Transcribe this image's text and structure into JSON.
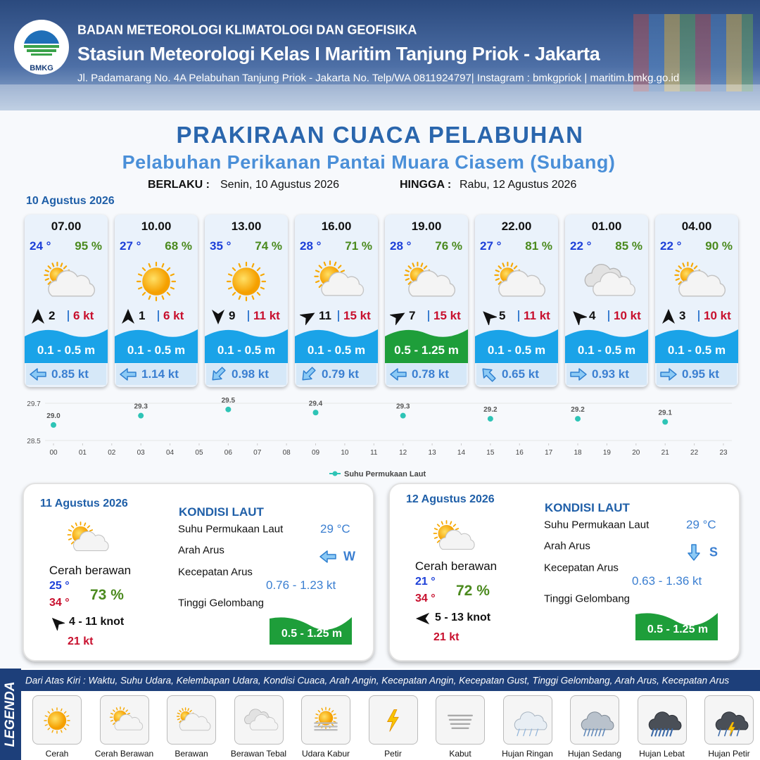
{
  "header": {
    "logo_text": "BMKG",
    "agency": "BADAN METEOROLOGI KLIMATOLOGI DAN GEOFISIKA",
    "station": "Stasiun Meteorologi Kelas I Maritim Tanjung Priok - Jakarta",
    "address": "Jl. Padamarang No. 4A Pelabuhan Tanjung Priok - Jakarta No. Telp/WA 0811924797| Instagram : bmkgpriok | maritim.bmkg.go.id"
  },
  "title": "PRAKIRAAN CUACA PELABUHAN",
  "subtitle": "Pelabuhan Perikanan Pantai Muara Ciasem (Subang)",
  "validity": {
    "from_label": "BERLAKU :",
    "from": "Senin, 10 Agustus 2026",
    "to_label": "HINGGA :",
    "to": "Rabu, 12 Agustus 2026"
  },
  "day1_date": "10 Agustus 2026",
  "cards": [
    {
      "time": "07.00",
      "temp": "24 °",
      "humidity": "95 %",
      "wind": "2",
      "gust": "6 kt",
      "wave": "0.1 - 0.5 m",
      "current": "0.85 kt"
    },
    {
      "time": "10.00",
      "temp": "27 °",
      "humidity": "68 %",
      "wind": "1",
      "gust": "6 kt",
      "wave": "0.1 - 0.5 m",
      "current": "1.14 kt"
    },
    {
      "time": "13.00",
      "temp": "35 °",
      "humidity": "74 %",
      "wind": "9",
      "gust": "11 kt",
      "wave": "0.1 - 0.5 m",
      "current": "0.98 kt"
    },
    {
      "time": "16.00",
      "temp": "28 °",
      "humidity": "71 %",
      "wind": "11",
      "gust": "15 kt",
      "wave": "0.1 - 0.5 m",
      "current": "0.79 kt"
    },
    {
      "time": "19.00",
      "temp": "28 °",
      "humidity": "76 %",
      "wind": "7",
      "gust": "15 kt",
      "wave": "0.5 - 1.25 m",
      "current": "0.78 kt"
    },
    {
      "time": "22.00",
      "temp": "27 °",
      "humidity": "81 %",
      "wind": "5",
      "gust": "11 kt",
      "wave": "0.1 - 0.5 m",
      "current": "0.65 kt"
    },
    {
      "time": "01.00",
      "temp": "22 °",
      "humidity": "85 %",
      "wind": "4",
      "gust": "10 kt",
      "wave": "0.1 - 0.5 m",
      "current": "0.93 kt"
    },
    {
      "time": "04.00",
      "temp": "22 °",
      "humidity": "90 %",
      "wind": "3",
      "gust": "10 kt",
      "wave": "0.1 - 0.5 m",
      "current": "0.95 kt"
    }
  ],
  "sst_chart": {
    "type": "scatter",
    "x": [
      0,
      3,
      6,
      9,
      12,
      15,
      18,
      21
    ],
    "values": [
      29.0,
      29.3,
      29.5,
      29.4,
      29.3,
      29.2,
      29.2,
      29.1
    ],
    "value_labels": [
      "29.0",
      "29.3",
      "29.5",
      "29.4",
      "29.3",
      "29.2",
      "29.2",
      "29.1"
    ],
    "xlim": [
      0,
      23
    ],
    "xticks": [
      {
        "value": 0,
        "label": "00"
      },
      {
        "value": 1,
        "label": "01"
      },
      {
        "value": 2,
        "label": "02"
      },
      {
        "value": 3,
        "label": "03"
      },
      {
        "value": 4,
        "label": "04"
      },
      {
        "value": 5,
        "label": "05"
      },
      {
        "value": 6,
        "label": "06"
      },
      {
        "value": 7,
        "label": "07"
      },
      {
        "value": 8,
        "label": "08"
      },
      {
        "value": 9,
        "label": "09"
      },
      {
        "value": 10,
        "label": "10"
      },
      {
        "value": 11,
        "label": "11"
      },
      {
        "value": 12,
        "label": "12"
      },
      {
        "value": 13,
        "label": "13"
      },
      {
        "value": 14,
        "label": "14"
      },
      {
        "value": 15,
        "label": "15"
      },
      {
        "value": 16,
        "label": "16"
      },
      {
        "value": 17,
        "label": "17"
      },
      {
        "value": 18,
        "label": "18"
      },
      {
        "value": 19,
        "label": "19"
      },
      {
        "value": 20,
        "label": "20"
      },
      {
        "value": 21,
        "label": "21"
      },
      {
        "value": 22,
        "label": "22"
      },
      {
        "value": 23,
        "label": "23"
      }
    ],
    "ylim": [
      28.5,
      29.7
    ],
    "yticks": [
      28.5,
      29.7
    ],
    "grid": true,
    "series_name": "Suhu Permukaan Laut",
    "color": "#2ec4b6"
  },
  "days": [
    {
      "date": "11 Agustus 2026",
      "condition": "Cerah berawan",
      "temp_min": "25 °",
      "temp_max": "34 °",
      "humidity": "73 %",
      "wind": "4  - 11 knot",
      "gust": "21 kt",
      "sea": {
        "heading": "KONDISI LAUT",
        "sst_label": "Suhu Permukaan Laut",
        "sst": "29 °C",
        "dir_label": "Arah Arus",
        "dir": "W",
        "speed_label": "Kecepatan Arus",
        "speed": "0.76  - 1.23 kt",
        "wave_label": "Tinggi Gelombang",
        "wave": "0.5 - 1.25 m"
      }
    },
    {
      "date": "12 Agustus 2026",
      "condition": "Cerah berawan",
      "temp_min": "21 °",
      "temp_max": "34 °",
      "humidity": "72 %",
      "wind": "5  - 13 knot",
      "gust": "21 kt",
      "sea": {
        "heading": "KONDISI LAUT",
        "sst_label": "Suhu Permukaan Laut",
        "sst": "29 °C",
        "dir_label": "Arah Arus",
        "dir": "S",
        "speed_label": "Kecepatan Arus",
        "speed": "0.63  - 1.36 kt",
        "wave_label": "Tinggi Gelombang",
        "wave": "0.5 - 1.25 m"
      }
    }
  ],
  "legend": {
    "title": "LEGENDA",
    "note": "Dari Atas Kiri : Waktu, Suhu Udara, Kelembapan Udara, Kondisi Cuaca, Arah Angin, Kecepatan Angin, Kecepatan Gust, Tinggi Gelombang, Arah Arus, Kecepatan Arus",
    "items": [
      "Cerah",
      "Cerah Berawan",
      "Berawan",
      "Berawan Tebal",
      "Udara Kabur",
      "Petir",
      "Kabut",
      "Hujan Ringan",
      "Hujan Sedang",
      "Hujan Lebat",
      "Hujan Petir"
    ]
  }
}
